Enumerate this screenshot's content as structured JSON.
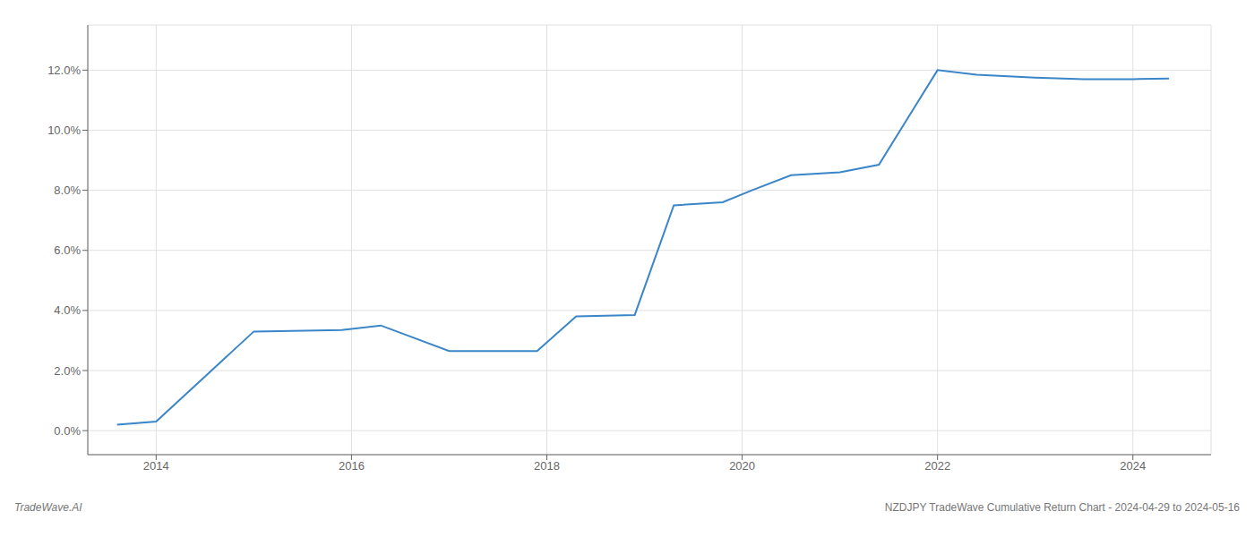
{
  "chart_data": {
    "type": "line",
    "x": [
      2013.6,
      2014.0,
      2015.0,
      2015.9,
      2016.3,
      2017.0,
      2017.9,
      2018.3,
      2018.9,
      2019.3,
      2019.8,
      2020.1,
      2020.5,
      2021.0,
      2021.4,
      2022.0,
      2022.4,
      2023.0,
      2023.5,
      2024.0,
      2024.37
    ],
    "values": [
      0.2,
      0.3,
      3.3,
      3.35,
      3.5,
      2.65,
      2.65,
      3.8,
      3.85,
      7.5,
      7.6,
      8.0,
      8.5,
      8.6,
      8.85,
      12.0,
      11.85,
      11.75,
      11.7,
      11.7,
      11.72
    ],
    "color": "#3a86c8",
    "xlim": [
      2013.3,
      2024.8
    ],
    "xticks": [
      2014,
      2016,
      2018,
      2020,
      2022,
      2024
    ],
    "ylim": [
      -0.8,
      13.5
    ],
    "yticks": [
      {
        "value": 0.0,
        "label": "0.0%"
      },
      {
        "value": 2.0,
        "label": "2.0%"
      },
      {
        "value": 4.0,
        "label": "4.0%"
      },
      {
        "value": 6.0,
        "label": "6.0%"
      },
      {
        "value": 8.0,
        "label": "8.0%"
      },
      {
        "value": 10.0,
        "label": "10.0%"
      },
      {
        "value": 12.0,
        "label": "12.0%"
      }
    ],
    "grid": true,
    "annotations": [
      "TradeWave.AI",
      "NZDJPY TradeWave Cumulative Return Chart - 2024-04-29 to 2024-05-16"
    ]
  }
}
